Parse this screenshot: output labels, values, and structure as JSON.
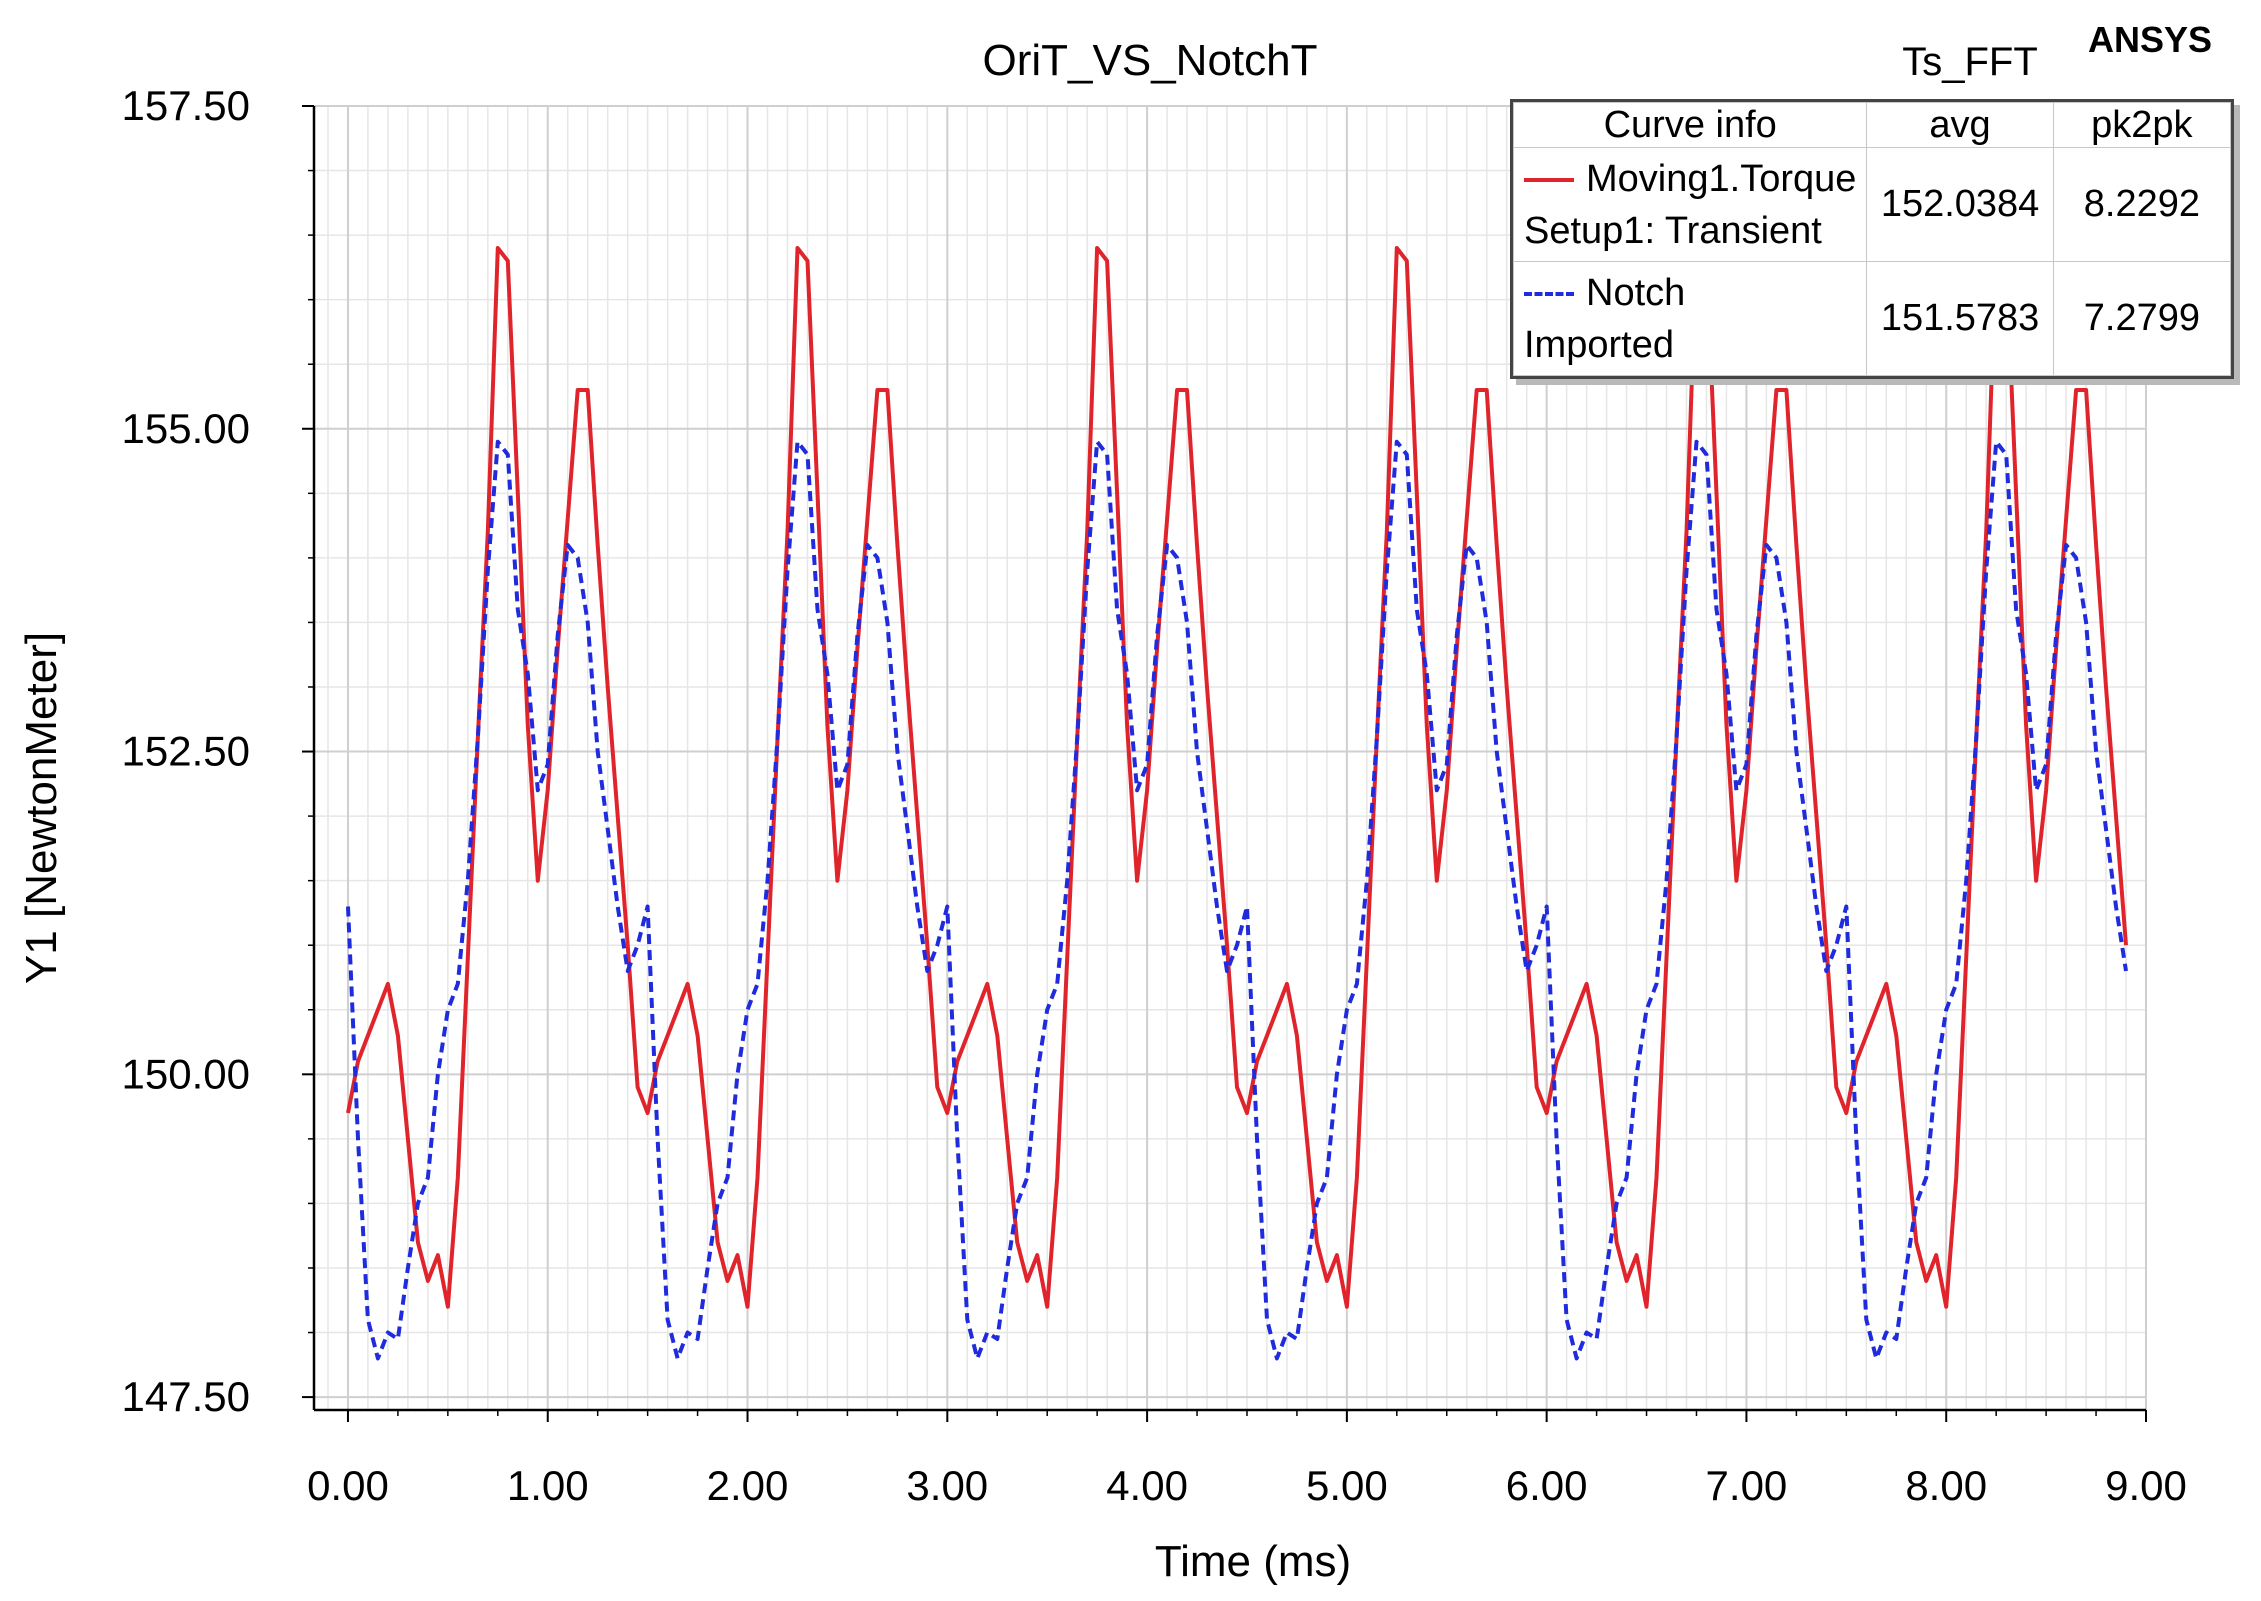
{
  "chart_data": {
    "type": "line",
    "title": "OriT_VS_NotchT",
    "plot_name": "Ts_FFT",
    "brand": "ANSYS",
    "xlabel": "Time (ms)",
    "ylabel": "Y1 [NewtonMeter]",
    "xlim": [
      -0.17,
      9.0
    ],
    "ylim": [
      147.4,
      157.5
    ],
    "xticks": [
      0,
      1,
      2,
      3,
      4,
      5,
      6,
      7,
      8,
      9
    ],
    "xtick_labels": [
      "0.00",
      "1.00",
      "2.00",
      "3.00",
      "4.00",
      "5.00",
      "6.00",
      "7.00",
      "8.00",
      "9.00"
    ],
    "yticks": [
      147.5,
      150.0,
      152.5,
      155.0,
      157.5
    ],
    "ytick_labels": [
      "147.50",
      "150.00",
      "152.50",
      "155.00",
      "157.50"
    ],
    "grid": true,
    "period_ms": 1.5,
    "series": [
      {
        "name": "Moving1.Torque",
        "source": "Setup1: Transient",
        "color": "#e0242b",
        "style": "solid",
        "avg": "152.0384",
        "pk2pk": "8.2292",
        "x_end": 8.9,
        "period_x": [
          0,
          0.05,
          0.1,
          0.2,
          0.25,
          0.3,
          0.35,
          0.4,
          0.45,
          0.5,
          0.55,
          0.6,
          0.65,
          0.7,
          0.75,
          0.8,
          0.85,
          0.9,
          0.95,
          1.0,
          1.05,
          1.1,
          1.15,
          1.2,
          1.25,
          1.3,
          1.35,
          1.4,
          1.45,
          1.5
        ],
        "period_y": [
          149.7,
          150.1,
          150.3,
          150.7,
          150.3,
          149.5,
          148.7,
          148.4,
          148.6,
          148.2,
          149.2,
          150.9,
          152.6,
          154.2,
          156.4,
          156.3,
          154.5,
          152.7,
          151.5,
          152.2,
          153.3,
          154.3,
          155.3,
          155.3,
          154.1,
          153.0,
          152.0,
          151.0,
          149.9,
          149.7
        ]
      },
      {
        "name": "Notch",
        "source": "Imported",
        "color": "#1f2bdc",
        "style": "dashed",
        "avg": "151.5783",
        "pk2pk": "7.2799",
        "x_end": 8.9,
        "period_x": [
          0,
          0.05,
          0.1,
          0.15,
          0.2,
          0.25,
          0.3,
          0.35,
          0.4,
          0.45,
          0.5,
          0.55,
          0.6,
          0.65,
          0.7,
          0.75,
          0.8,
          0.85,
          0.9,
          0.95,
          1.0,
          1.05,
          1.1,
          1.15,
          1.2,
          1.25,
          1.3,
          1.35,
          1.4,
          1.45,
          1.5
        ],
        "period_y": [
          151.3,
          149.5,
          148.1,
          147.8,
          148.0,
          147.95,
          148.5,
          149.0,
          149.2,
          150.0,
          150.5,
          150.7,
          151.5,
          152.6,
          153.9,
          154.9,
          154.8,
          153.6,
          153.1,
          152.2,
          152.4,
          153.4,
          154.1,
          154.0,
          153.5,
          152.5,
          151.9,
          151.3,
          150.8,
          151.0,
          151.3
        ]
      }
    ]
  },
  "legend": {
    "header_curve": "Curve info",
    "header_avg": "avg",
    "header_pk2pk": "pk2pk"
  }
}
